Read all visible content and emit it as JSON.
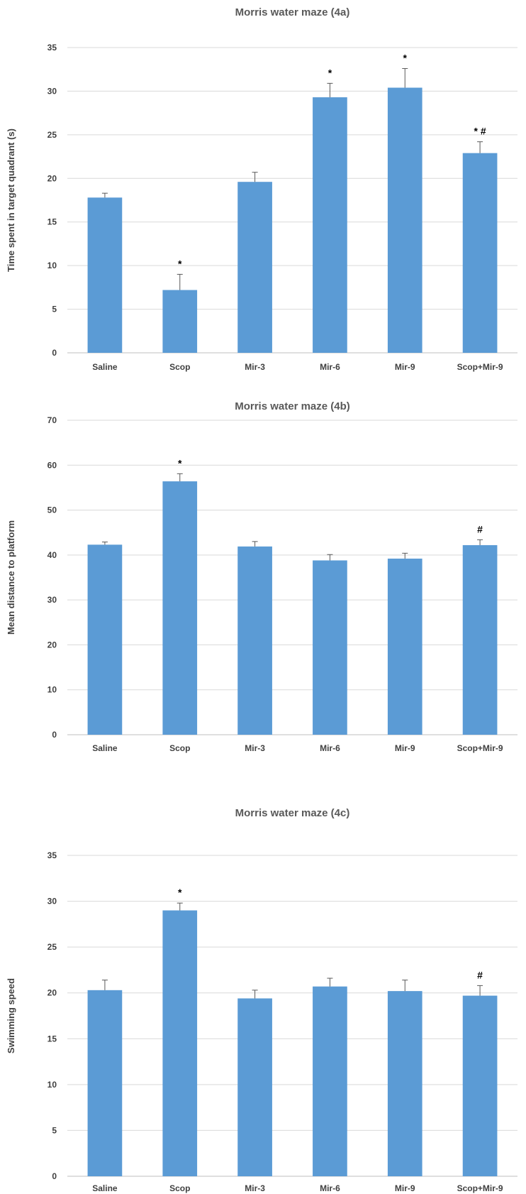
{
  "chart_data": [
    {
      "type": "bar",
      "title": "Morris water maze (4a)",
      "xlabel": "",
      "ylabel": "Time spent in target quadrant (s)",
      "categories": [
        "Saline",
        "Scop",
        "Mir-3",
        "Mir-6",
        "Mir-9",
        "Scop+Mir-9"
      ],
      "values": [
        17.8,
        7.2,
        19.6,
        29.3,
        30.4,
        22.9
      ],
      "errors": [
        0.5,
        1.8,
        1.1,
        1.6,
        2.2,
        1.3
      ],
      "annotations": [
        "",
        "*",
        "",
        "*",
        "*",
        "* #"
      ],
      "ylim": [
        0,
        35
      ],
      "yticks": [
        0,
        5,
        10,
        15,
        20,
        25,
        30,
        35
      ],
      "color": "#5b9bd5",
      "grid": true
    },
    {
      "type": "bar",
      "title": "Morris water maze (4b)",
      "xlabel": "",
      "ylabel": "Mean distance to platform",
      "categories": [
        "Saline",
        "Scop",
        "Mir-3",
        "Mir-6",
        "Mir-9",
        "Scop+Mir-9"
      ],
      "values": [
        42.3,
        56.4,
        41.9,
        38.8,
        39.2,
        42.2
      ],
      "errors": [
        0.6,
        1.7,
        1.1,
        1.3,
        1.2,
        1.2
      ],
      "annotations": [
        "",
        "*",
        "",
        "",
        "",
        "#"
      ],
      "ylim": [
        0,
        70
      ],
      "yticks": [
        0,
        10,
        20,
        30,
        40,
        50,
        60,
        70
      ],
      "color": "#5b9bd5",
      "grid": true
    },
    {
      "type": "bar",
      "title": "Morris water maze (4c)",
      "xlabel": "",
      "ylabel": "Swimming speed",
      "categories": [
        "Saline",
        "Scop",
        "Mir-3",
        "Mir-6",
        "Mir-9",
        "Scop+Mir-9"
      ],
      "values": [
        20.3,
        29.0,
        19.4,
        20.7,
        20.2,
        19.7
      ],
      "errors": [
        1.1,
        0.8,
        0.9,
        0.9,
        1.2,
        1.1
      ],
      "annotations": [
        "",
        "*",
        "",
        "",
        "",
        "#"
      ],
      "ylim": [
        0,
        35
      ],
      "yticks": [
        0,
        5,
        10,
        15,
        20,
        25,
        30,
        35
      ],
      "color": "#5b9bd5",
      "grid": true
    }
  ]
}
